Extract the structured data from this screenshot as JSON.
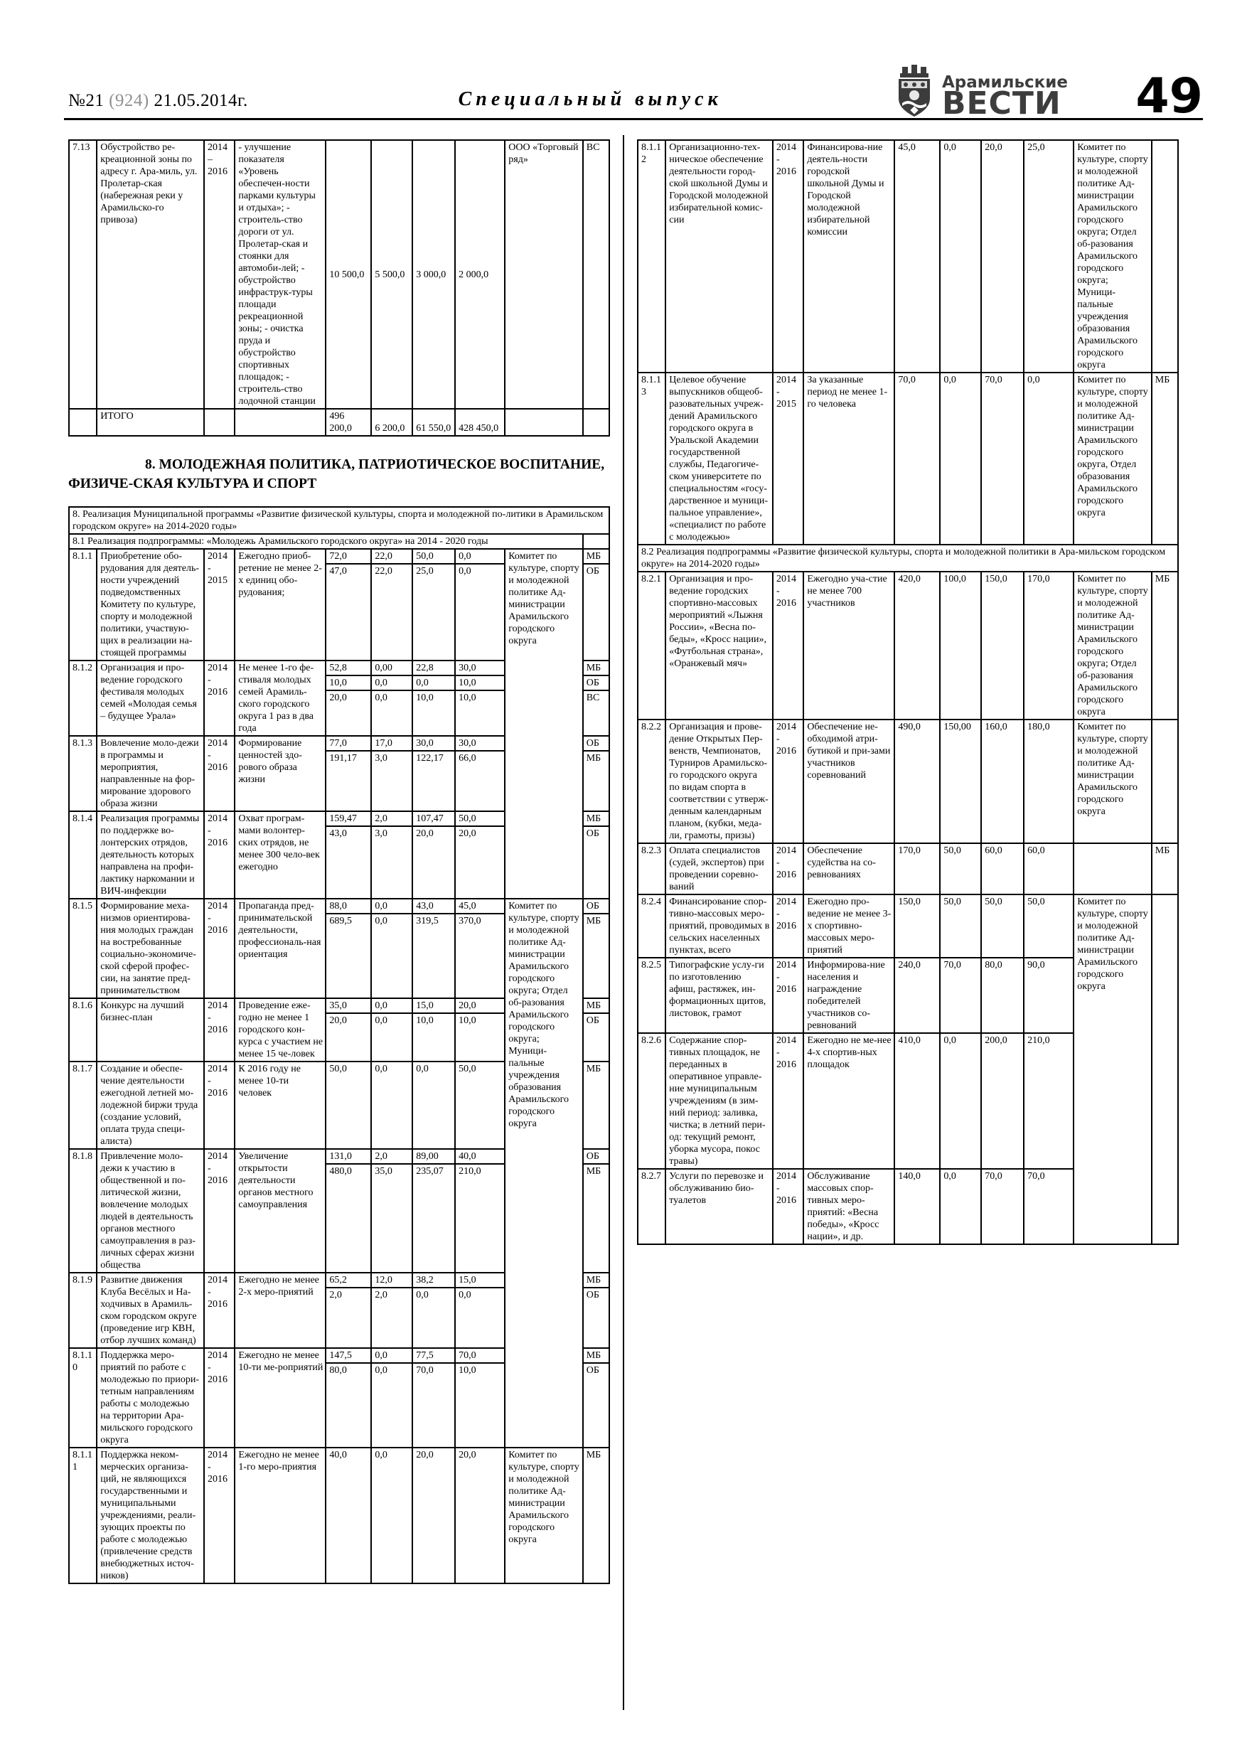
{
  "header": {
    "issue_no": "№21",
    "issue_code": "(924)",
    "issue_date": "21.05.2014г.",
    "special_title": "Специальный  выпуск",
    "brand_top": "Арамильские",
    "brand_name": "ВЕСТИ",
    "page_number": "49"
  },
  "section_heading": "8. МОЛОДЕЖНАЯ ПОЛИТИКА, ПАТРИОТИЧЕСКОЕ ВОСПИТАНИЕ, ФИЗИЧЕ-СКАЯ КУЛЬТУРА И СПОРТ",
  "tables": {
    "top": {
      "items": [
        {
          "type": "row",
          "num": "7.13",
          "name": "Обустройство ре-креационной зоны по адресу г. Ара-миль, ул. Пролетар-ская (набережная реки у Арамильско-го привоза)",
          "years": "2014 – 2016",
          "result": "- улучшение показателя «Уровень обеспечен-ности парками культуры и отдыха»; - строитель-ство дороги от ул. Пролетар-ская и стоянки для автомоби-лей; - обустройство инфраструк-туры площади рекреационной зоны; - очистка пруда и обустройство спортивных площадок; - строитель-ство лодочной станции",
          "lines": [
            {
              "v": [
                "10 500,0",
                "5 500,0",
                "3 000,0",
                "2 000,0"
              ],
              "src": "ВС"
            }
          ],
          "exec": "ООО «Торговый ряд»",
          "exec_span": 1
        },
        {
          "type": "row",
          "vcls": "v-bottom",
          "num": "",
          "name": "ИТОГО",
          "years": "",
          "result": "",
          "lines": [
            {
              "v": [
                "496 200,0",
                "6 200,0",
                "61 550,0",
                "428 450,0"
              ],
              "src": ""
            }
          ],
          "exec": "",
          "exec_span": 1
        }
      ]
    },
    "left": {
      "items": [
        {
          "type": "header",
          "kind": "program",
          "span": 10,
          "tail": 0,
          "text": "8. Реализация Муниципальной программы «Развитие физической культуры, спорта и молодежной по-литики в Арамильском городском округе» на 2014-2020 годы»"
        },
        {
          "type": "header",
          "kind": "sub",
          "span": 9,
          "tail": 1,
          "text": "8.1 Реализация подпрограммы: «Молодежь Арамильского городского округа» на 2014 - 2020 годы"
        },
        {
          "type": "row",
          "num": "8.1.1",
          "name": "Приобретение обо-рудования для деятель-ности учреждений подведомственных Комитету по культуре, спорту и молодежной политики, участвую-щих в реализации на-стоящей программы",
          "years": "2014 - 2015",
          "result": "Ежегодно приоб-ретение не менее 2-х единиц обо-рудования;",
          "lines": [
            {
              "v": [
                "72,0",
                "22,0",
                "50,0",
                "0,0"
              ],
              "src": "МБ"
            },
            {
              "v": [
                "47,0",
                "22,0",
                "25,0",
                "0,0"
              ],
              "src": "ОБ"
            }
          ],
          "exec": "Комитет по культуре, спорту и молодежной политике Ад-министрации Арамильского городского округа",
          "exec_span": 4
        },
        {
          "type": "row",
          "num": "8.1.2",
          "name": "Организация и про-ведение городского фестиваля молодых семей «Молодая семья – будущее Урала»",
          "years": "2014 - 2016",
          "result": "Не менее 1-го фе-стиваля молодых семей Арамиль-ского городского округа 1 раз в два года",
          "lines": [
            {
              "v": [
                "52,8",
                "0,00",
                "22,8",
                "30,0"
              ],
              "src": "МБ"
            },
            {
              "v": [
                "10,0",
                "0,0",
                "0,0",
                "10,0"
              ],
              "src": "ОБ"
            },
            {
              "v": [
                "20,0",
                "0,0",
                "10,0",
                "10,0"
              ],
              "src": "ВС"
            }
          ],
          "exec": null
        },
        {
          "type": "row",
          "num": "8.1.3",
          "name": "Вовлечение моло-дежи в программы и мероприятия, направленные на фор-мирование здорового образа жизни",
          "years": "2014 - 2016",
          "result": "Формирование ценностей здо-рового образа жизни",
          "lines": [
            {
              "v": [
                "77,0",
                "17,0",
                "30,0",
                "30,0"
              ],
              "src": "ОБ"
            },
            {
              "v": [
                "191,17",
                "3,0",
                "122,17",
                "66,0"
              ],
              "src": "МБ"
            }
          ],
          "exec": null
        },
        {
          "type": "row",
          "num": "8.1.4",
          "name": "Реализация программы по поддержке во-лонтерских отрядов, деятельность которых направлена на профи-лактику наркомании и ВИЧ-инфекции",
          "years": "2014 - 2016",
          "result": "Охват програм-мами волонтер-ских отрядов, не менее 300 чело-век ежегодно",
          "lines": [
            {
              "v": [
                "159,47",
                "2,0",
                "107,47",
                "50,0"
              ],
              "src": "МБ"
            },
            {
              "v": [
                "43,0",
                "3,0",
                "20,0",
                "20,0"
              ],
              "src": "ОБ"
            }
          ],
          "exec": null
        },
        {
          "type": "row",
          "num": "8.1.5",
          "name": "Формирование меха-низмов ориентирова-ния молодых граждан на востребованные социально-экономиче-ской сферой профес-сии, на занятие пред-принимательством",
          "years": "2014 - 2016",
          "result": "Пропаганда пред-принимательской деятельности, профессиональ-ная ориентация",
          "lines": [
            {
              "v": [
                "88,0",
                "0,0",
                "43,0",
                "45,0"
              ],
              "src": "ОБ"
            },
            {
              "v": [
                "689,5",
                "0,0",
                "319,5",
                "370,0"
              ],
              "src": "МБ"
            }
          ],
          "exec": "Комитет по культуре, спорту и молодежной политике Ад-министрации Арамильского городского округа; Отдел об-разования Арамильского городского округа; Муници-пальные учреждения образования Арамильского городского округа",
          "exec_span": 6
        },
        {
          "type": "row",
          "num": "8.1.6",
          "name": "Конкурс на лучший бизнес-план",
          "years": "2014 - 2016",
          "result": "Проведение еже-годно не менее 1 городского кон-курса с участием не менее 15 че-ловек",
          "lines": [
            {
              "v": [
                "35,0",
                "0,0",
                "15,0",
                "20,0"
              ],
              "src": "МБ"
            },
            {
              "v": [
                "20,0",
                "0,0",
                "10,0",
                "10,0"
              ],
              "src": "ОБ"
            }
          ],
          "exec": null
        },
        {
          "type": "row",
          "num": "8.1.7",
          "name": "Создание и обеспе-чение деятельности ежегодной летней мо-лодежной биржи труда (создание условий, оплата труда специ-алиста)",
          "years": "2014 - 2016",
          "result": "К 2016 году не менее   10-ти человек",
          "lines": [
            {
              "v": [
                "50,0",
                "0,0",
                "0,0",
                "50,0"
              ],
              "src": "МБ"
            }
          ],
          "exec": null
        },
        {
          "type": "row",
          "num": "8.1.8",
          "name": "Привлечение моло-дежи к участию в общественной и по-литической жизни, вовлечение молодых людей в деятельность органов местного самоуправления в раз-личных сферах жизни общества",
          "years": "2014 - 2016",
          "result": "Увеличение открытости деятельности органов местного самоуправления",
          "lines": [
            {
              "v": [
                "131,0",
                "2,0",
                "89,00",
                "40,0"
              ],
              "src": "ОБ"
            },
            {
              "v": [
                "480,0",
                "35,0",
                "235,07",
                "210,0"
              ],
              "src": "МБ"
            }
          ],
          "exec": null
        },
        {
          "type": "row",
          "num": "8.1.9",
          "name": "Развитие движения Клуба Весёлых и На-ходчивых в Арамиль-ском городском округе (проведение игр КВН, отбор лучших команд)",
          "years": "2014 - 2016",
          "result": "Ежегодно не менее 2-х меро-приятий",
          "lines": [
            {
              "v": [
                "65,2",
                "12,0",
                "38,2",
                "15,0"
              ],
              "src": "МБ"
            },
            {
              "v": [
                "2,0",
                "2,0",
                "0,0",
                "0,0"
              ],
              "src": "ОБ"
            }
          ],
          "exec": null
        },
        {
          "type": "row",
          "num": "8.1.10",
          "name": "Поддержка меро-приятий по работе с молодежью по приори-тетным направлениям работы с молодежью на территории Ара-мильского городского округа",
          "years": "2014 - 2016",
          "result": "Ежегодно не менее 10-ти ме-роприятий",
          "lines": [
            {
              "v": [
                "147,5",
                "0,0",
                "77,5",
                "70,0"
              ],
              "src": "МБ"
            },
            {
              "v": [
                "80,0",
                "0,0",
                "70,0",
                "10,0"
              ],
              "src": "ОБ"
            }
          ],
          "exec": null
        },
        {
          "type": "row",
          "num": "8.1.11",
          "name": "Поддержка неком-мерческих организа-ций, не являющихся государственными и муниципальными учреждениями, реали-зующих проекты по работе с молодежью (привлечение средств внебюджетных источ-ников)",
          "years": "2014 - 2016",
          "result": "Ежегодно не менее 1-го меро-приятия",
          "lines": [
            {
              "v": [
                "40,0",
                "0,0",
                "20,0",
                "20,0"
              ],
              "src": "МБ"
            }
          ],
          "exec": "Комитет по культуре, спорту и молодежной политике Ад-министрации Арамильского городского округа",
          "exec_span": 1
        }
      ]
    },
    "right": {
      "items": [
        {
          "type": "row",
          "num": "8.1.12",
          "name": "Организационно-тех-ническое обеспечение деятельности город-ской школьной Думы и Городской молодежной избирательной комис-сии",
          "years": "2014 - 2016",
          "result": "Финансирова-ние деятель-ности городской школьной Думы и Городской молодежной избирательной комиссии",
          "lines": [
            {
              "v": [
                "45,0",
                "0,0",
                "20,0",
                "25,0"
              ],
              "src": ""
            }
          ],
          "exec": "Комитет по культуре, спорту и молодежной политике Ад-министрации Арамильского городского округа; Отдел об-разования Арамильского городского округа; Муници-пальные учреждения образования Арамильского городского округа",
          "exec_span": 1
        },
        {
          "type": "row",
          "num": "8.1.13",
          "name": "Целевое обучение выпускников общеоб-разовательных учреж-дений Арамильского городского округа в Уральской Академии государственной службы, Педагогиче-ском университете по специальностям «госу-дарственное и муници-пальное управление», «специалист по работе с молодежью»",
          "years": "2014 - 2015",
          "result": "За указанные период не менее 1-го человека",
          "lines": [
            {
              "v": [
                "70,0",
                "0,0",
                "70,0",
                "0,0"
              ],
              "src": "МБ"
            }
          ],
          "exec": "Комитет по культуре, спорту и молодежной политике Ад-министрации Арамильского городского округа, Отдел образования Арамильского городского округа",
          "exec_span": 1
        },
        {
          "type": "header",
          "kind": "sub",
          "span": 10,
          "tail": 0,
          "text": "8.2 Реализация подпрограммы «Развитие физической культуры, спорта и молодежной политики в Ара-мильском городском округе» на 2014-2020 годы»"
        },
        {
          "type": "row",
          "num": "8.2.1",
          "name": "Организация и про-ведение городских спортивно-массовых мероприятий «Лыжня России», «Весна по-беды», «Кросс нации», «Футбольная страна», «Оранжевый мяч»",
          "years": "2014 - 2016",
          "result": "Ежегодно уча-стие не менее 700 участников",
          "lines": [
            {
              "v": [
                "420,0",
                "100,0",
                "150,0",
                "170,0"
              ],
              "src": "МБ"
            }
          ],
          "exec": "Комитет по культуре, спорту и молодежной политике Ад-министрации Арамильского городского округа; Отдел об-разования Арамильского городского округа",
          "exec_span": 1
        },
        {
          "type": "row",
          "num": "8.2.2",
          "name": "Организация и прове-дение Открытых Пер-венств, Чемпионатов, Турниров Арамильско-го городского округа по видам спорта в соответствии с утверж-денным календарным планом, (кубки, меда-ли, грамоты, призы)",
          "years": "2014 - 2016",
          "result": "Обеспечение не-обходимой атри-бутикой и при-зами участников соревнований",
          "lines": [
            {
              "v": [
                "490,0",
                "150,00",
                "160,0",
                "180,0"
              ],
              "src": ""
            }
          ],
          "exec": "Комитет по культуре, спорту и молодежной политике Ад-министрации Арамильского городского округа",
          "exec_span": 1
        },
        {
          "type": "row",
          "num": "8.2.3",
          "name": "Оплата специалистов (судей, экспертов) при проведении соревно-ваний",
          "years": "2014 - 2016",
          "result": "Обеспечение судейства на со-ревнованиях",
          "lines": [
            {
              "v": [
                "170,0",
                "50,0",
                "60,0",
                "60,0"
              ],
              "src": "МБ"
            }
          ],
          "exec": "",
          "exec_span": 1
        },
        {
          "type": "row",
          "num": "8.2.4",
          "name": "Финансирование спор-тивно-массовых меро-приятий, проводимых в сельских населенных пунктах, всего",
          "years": "2014 - 2016",
          "result": "Ежегодно про-ведение не менее 3-х спортивно-массовых меро-приятий",
          "lines": [
            {
              "v": [
                "150,0",
                "50,0",
                "50,0",
                "50,0"
              ],
              "src": "",
              "src_rows": 4
            }
          ],
          "exec": "Комитет по культуре, спорту и молодежной политике Ад-министрации Арамильского городского округа",
          "exec_span": 4
        },
        {
          "type": "row",
          "num": "8.2.5",
          "name": "Типографские услу-ги по изготовлению афиш, растяжек, ин-формационных щитов, листовок, грамот",
          "years": "2014 - 2016",
          "result": "Информирова-ние населения и награждение победителей участников со-ревнований",
          "lines": [
            {
              "v": [
                "240,0",
                "70,0",
                "80,0",
                "90,0"
              ],
              "src": null
            }
          ],
          "exec": null
        },
        {
          "type": "row",
          "num": "8.2.6",
          "name": "Содержание спор-тивных площадок, не переданных в оперативное управле-ние муниципальным учреждениям (в зим-ний период: заливка, чистка; в летний пери-од: текущий ремонт, уборка мусора, покос травы)",
          "years": "2014 - 2016",
          "result": "Ежегодно не ме-нее 4-х спортив-ных площадок",
          "lines": [
            {
              "v": [
                "410,0",
                "0,0",
                "200,0",
                "210,0"
              ],
              "src": null
            }
          ],
          "exec": null
        },
        {
          "type": "row",
          "num": "8.2.7",
          "name": "Услуги по перевозке и обслуживанию био-туалетов",
          "years": "2014 - 2016",
          "result": "Обслуживание массовых спор-тивных меро-приятий: «Весна победы», «Кросс нации», и др.",
          "lines": [
            {
              "v": [
                "140,0",
                "0,0",
                "70,0",
                "70,0"
              ],
              "src": null
            }
          ],
          "exec": null
        }
      ]
    }
  }
}
